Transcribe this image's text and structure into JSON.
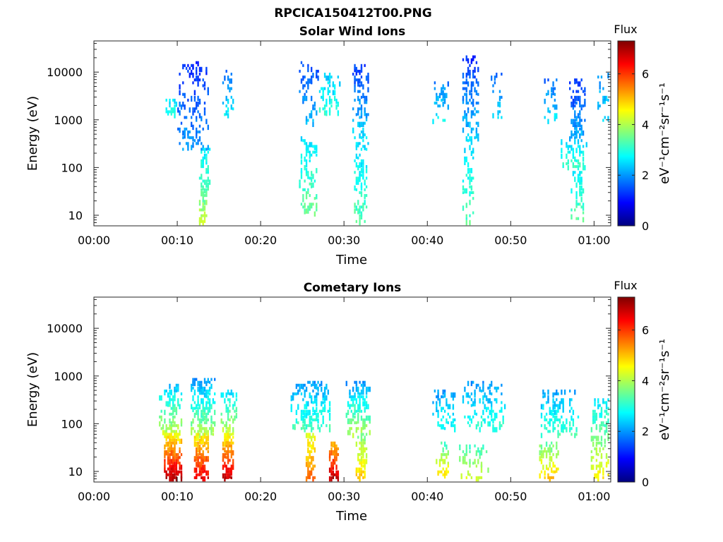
{
  "figure": {
    "title": "RPCICA150412T00.PNG"
  },
  "colorbar": {
    "stops": [
      "#00007f",
      "#0000ff",
      "#007fff",
      "#00ffff",
      "#7fff7f",
      "#ffff00",
      "#ff7f00",
      "#ff0000",
      "#7f0000"
    ],
    "axis_line": "#262626"
  },
  "chart_data": [
    {
      "type": "heatmap",
      "title": "Solar Wind Ions",
      "xlabel": "Time",
      "ylabel": "Energy (eV)",
      "x_unit": "minutes after 00:00",
      "xlim": [
        0,
        62
      ],
      "ylim": [
        6,
        45000
      ],
      "yscale": "log",
      "xticks": [
        0,
        10,
        20,
        30,
        40,
        50,
        60
      ],
      "xtick_labels": [
        "00:00",
        "00:10",
        "00:20",
        "00:30",
        "00:40",
        "00:50",
        "01:00"
      ],
      "yticks": [
        10,
        100,
        1000,
        10000
      ],
      "ytick_labels": [
        "10",
        "100",
        "1000",
        "10000"
      ],
      "colorbar": {
        "title": "Flux",
        "label": "eV⁻¹cm⁻²sr⁻¹s⁻¹",
        "range": [
          0,
          7.3
        ],
        "ticks": [
          0,
          2,
          4,
          6
        ],
        "tick_labels": [
          "0",
          "2",
          "4",
          "6"
        ]
      },
      "bursts": [
        {
          "t": 9.2,
          "dt": 1.2,
          "e_lo": 1200,
          "e_hi": 2600,
          "flux_lo": 2.5,
          "flux_hi": 3.0,
          "density": 0.35
        },
        {
          "t": 11.8,
          "dt": 3.6,
          "e_lo": 250,
          "e_hi": 15000,
          "flux_lo": 1.2,
          "flux_hi": 2.0,
          "density": 0.3
        },
        {
          "t": 13.2,
          "dt": 1.4,
          "e_lo": 30,
          "e_hi": 250,
          "flux_lo": 2.6,
          "flux_hi": 3.3,
          "density": 0.45
        },
        {
          "t": 13.0,
          "dt": 1.0,
          "e_lo": 7,
          "e_hi": 30,
          "flux_lo": 3.3,
          "flux_hi": 4.2,
          "density": 0.75
        },
        {
          "t": 16.0,
          "dt": 1.3,
          "e_lo": 1000,
          "e_hi": 10000,
          "flux_lo": 1.6,
          "flux_hi": 2.8,
          "density": 0.3
        },
        {
          "t": 25.8,
          "dt": 2.2,
          "e_lo": 800,
          "e_hi": 16000,
          "flux_lo": 1.3,
          "flux_hi": 2.3,
          "density": 0.3
        },
        {
          "t": 25.6,
          "dt": 2.0,
          "e_lo": 12,
          "e_hi": 400,
          "flux_lo": 2.5,
          "flux_hi": 3.5,
          "density": 0.35
        },
        {
          "t": 28.2,
          "dt": 2.4,
          "e_lo": 1200,
          "e_hi": 9000,
          "flux_lo": 2.3,
          "flux_hi": 3.0,
          "density": 0.3
        },
        {
          "t": 32.0,
          "dt": 2.0,
          "e_lo": 300,
          "e_hi": 14000,
          "flux_lo": 1.3,
          "flux_hi": 2.6,
          "density": 0.4
        },
        {
          "t": 32.0,
          "dt": 1.6,
          "e_lo": 7,
          "e_hi": 300,
          "flux_lo": 2.4,
          "flux_hi": 3.4,
          "density": 0.4
        },
        {
          "t": 41.6,
          "dt": 2.0,
          "e_lo": 1000,
          "e_hi": 6000,
          "flux_lo": 1.8,
          "flux_hi": 2.6,
          "density": 0.25
        },
        {
          "t": 45.2,
          "dt": 2.0,
          "e_lo": 400,
          "e_hi": 20000,
          "flux_lo": 1.2,
          "flux_hi": 2.4,
          "density": 0.45
        },
        {
          "t": 44.9,
          "dt": 1.2,
          "e_lo": 7,
          "e_hi": 400,
          "flux_lo": 2.5,
          "flux_hi": 3.3,
          "density": 0.35
        },
        {
          "t": 48.4,
          "dt": 1.6,
          "e_lo": 1000,
          "e_hi": 9000,
          "flux_lo": 1.5,
          "flux_hi": 2.5,
          "density": 0.25
        },
        {
          "t": 55.0,
          "dt": 2.0,
          "e_lo": 1000,
          "e_hi": 8000,
          "flux_lo": 1.5,
          "flux_hi": 2.6,
          "density": 0.25
        },
        {
          "t": 58.0,
          "dt": 2.0,
          "e_lo": 400,
          "e_hi": 7000,
          "flux_lo": 1.2,
          "flux_hi": 2.2,
          "density": 0.45
        },
        {
          "t": 57.6,
          "dt": 3.2,
          "e_lo": 100,
          "e_hi": 400,
          "flux_lo": 2.3,
          "flux_hi": 3.1,
          "density": 0.35
        },
        {
          "t": 58.0,
          "dt": 1.4,
          "e_lo": 7,
          "e_hi": 100,
          "flux_lo": 2.6,
          "flux_hi": 3.4,
          "density": 0.3
        },
        {
          "t": 61.2,
          "dt": 1.8,
          "e_lo": 1000,
          "e_hi": 10000,
          "flux_lo": 1.8,
          "flux_hi": 2.6,
          "density": 0.22
        }
      ]
    },
    {
      "type": "heatmap",
      "title": "Cometary Ions",
      "xlabel": "Time",
      "ylabel": "Energy (eV)",
      "x_unit": "minutes after 00:00",
      "xlim": [
        0,
        62
      ],
      "ylim": [
        6,
        45000
      ],
      "yscale": "log",
      "xticks": [
        0,
        10,
        20,
        30,
        40,
        50,
        60
      ],
      "xtick_labels": [
        "00:00",
        "00:10",
        "00:20",
        "00:30",
        "00:40",
        "00:50",
        "01:00"
      ],
      "yticks": [
        10,
        100,
        1000,
        10000
      ],
      "ytick_labels": [
        "10",
        "100",
        "1000",
        "10000"
      ],
      "colorbar": {
        "title": "Flux",
        "label": "eV⁻¹cm⁻²sr⁻¹s⁻¹",
        "range": [
          0,
          7.3
        ],
        "ticks": [
          0,
          2,
          4,
          6
        ],
        "tick_labels": [
          "0",
          "2",
          "4",
          "6"
        ]
      },
      "bursts": [
        {
          "t": 9.2,
          "dt": 2.6,
          "e_lo": 60,
          "e_hi": 600,
          "flux_lo": 2.3,
          "flux_hi": 4.2,
          "density": 0.55
        },
        {
          "t": 9.4,
          "dt": 2.2,
          "e_lo": 7,
          "e_hi": 60,
          "flux_lo": 4.5,
          "flux_hi": 7.0,
          "density": 0.85
        },
        {
          "t": 13.0,
          "dt": 2.8,
          "e_lo": 60,
          "e_hi": 800,
          "flux_lo": 2.0,
          "flux_hi": 4.0,
          "density": 0.55
        },
        {
          "t": 12.8,
          "dt": 1.8,
          "e_lo": 7,
          "e_hi": 60,
          "flux_lo": 4.5,
          "flux_hi": 6.6,
          "density": 0.8
        },
        {
          "t": 16.2,
          "dt": 1.8,
          "e_lo": 60,
          "e_hi": 500,
          "flux_lo": 2.3,
          "flux_hi": 4.2,
          "density": 0.5
        },
        {
          "t": 16.0,
          "dt": 1.2,
          "e_lo": 7,
          "e_hi": 60,
          "flux_lo": 4.5,
          "flux_hi": 6.8,
          "density": 0.85
        },
        {
          "t": 26.0,
          "dt": 4.6,
          "e_lo": 80,
          "e_hi": 700,
          "flux_lo": 2.0,
          "flux_hi": 3.2,
          "density": 0.45
        },
        {
          "t": 25.9,
          "dt": 1.0,
          "e_lo": 7,
          "e_hi": 60,
          "flux_lo": 4.3,
          "flux_hi": 5.6,
          "density": 0.7
        },
        {
          "t": 28.7,
          "dt": 1.0,
          "e_lo": 7,
          "e_hi": 40,
          "flux_lo": 5.0,
          "flux_hi": 6.9,
          "density": 0.75
        },
        {
          "t": 31.6,
          "dt": 3.0,
          "e_lo": 60,
          "e_hi": 700,
          "flux_lo": 2.0,
          "flux_hi": 4.0,
          "density": 0.5
        },
        {
          "t": 32.0,
          "dt": 1.4,
          "e_lo": 7,
          "e_hi": 60,
          "flux_lo": 3.6,
          "flux_hi": 5.0,
          "density": 0.75
        },
        {
          "t": 42.0,
          "dt": 3.0,
          "e_lo": 80,
          "e_hi": 500,
          "flux_lo": 2.0,
          "flux_hi": 2.8,
          "density": 0.3
        },
        {
          "t": 41.8,
          "dt": 1.4,
          "e_lo": 7,
          "e_hi": 40,
          "flux_lo": 3.2,
          "flux_hi": 5.0,
          "density": 0.45
        },
        {
          "t": 46.8,
          "dt": 5.0,
          "e_lo": 80,
          "e_hi": 700,
          "flux_lo": 2.0,
          "flux_hi": 3.0,
          "density": 0.35
        },
        {
          "t": 45.6,
          "dt": 3.6,
          "e_lo": 7,
          "e_hi": 40,
          "flux_lo": 3.0,
          "flux_hi": 4.2,
          "density": 0.25
        },
        {
          "t": 55.8,
          "dt": 4.6,
          "e_lo": 60,
          "e_hi": 500,
          "flux_lo": 2.0,
          "flux_hi": 3.2,
          "density": 0.4
        },
        {
          "t": 54.6,
          "dt": 2.4,
          "e_lo": 7,
          "e_hi": 40,
          "flux_lo": 3.4,
          "flux_hi": 5.0,
          "density": 0.4
        },
        {
          "t": 60.8,
          "dt": 2.4,
          "e_lo": 7,
          "e_hi": 300,
          "flux_lo": 2.6,
          "flux_hi": 4.6,
          "density": 0.4
        }
      ]
    }
  ]
}
